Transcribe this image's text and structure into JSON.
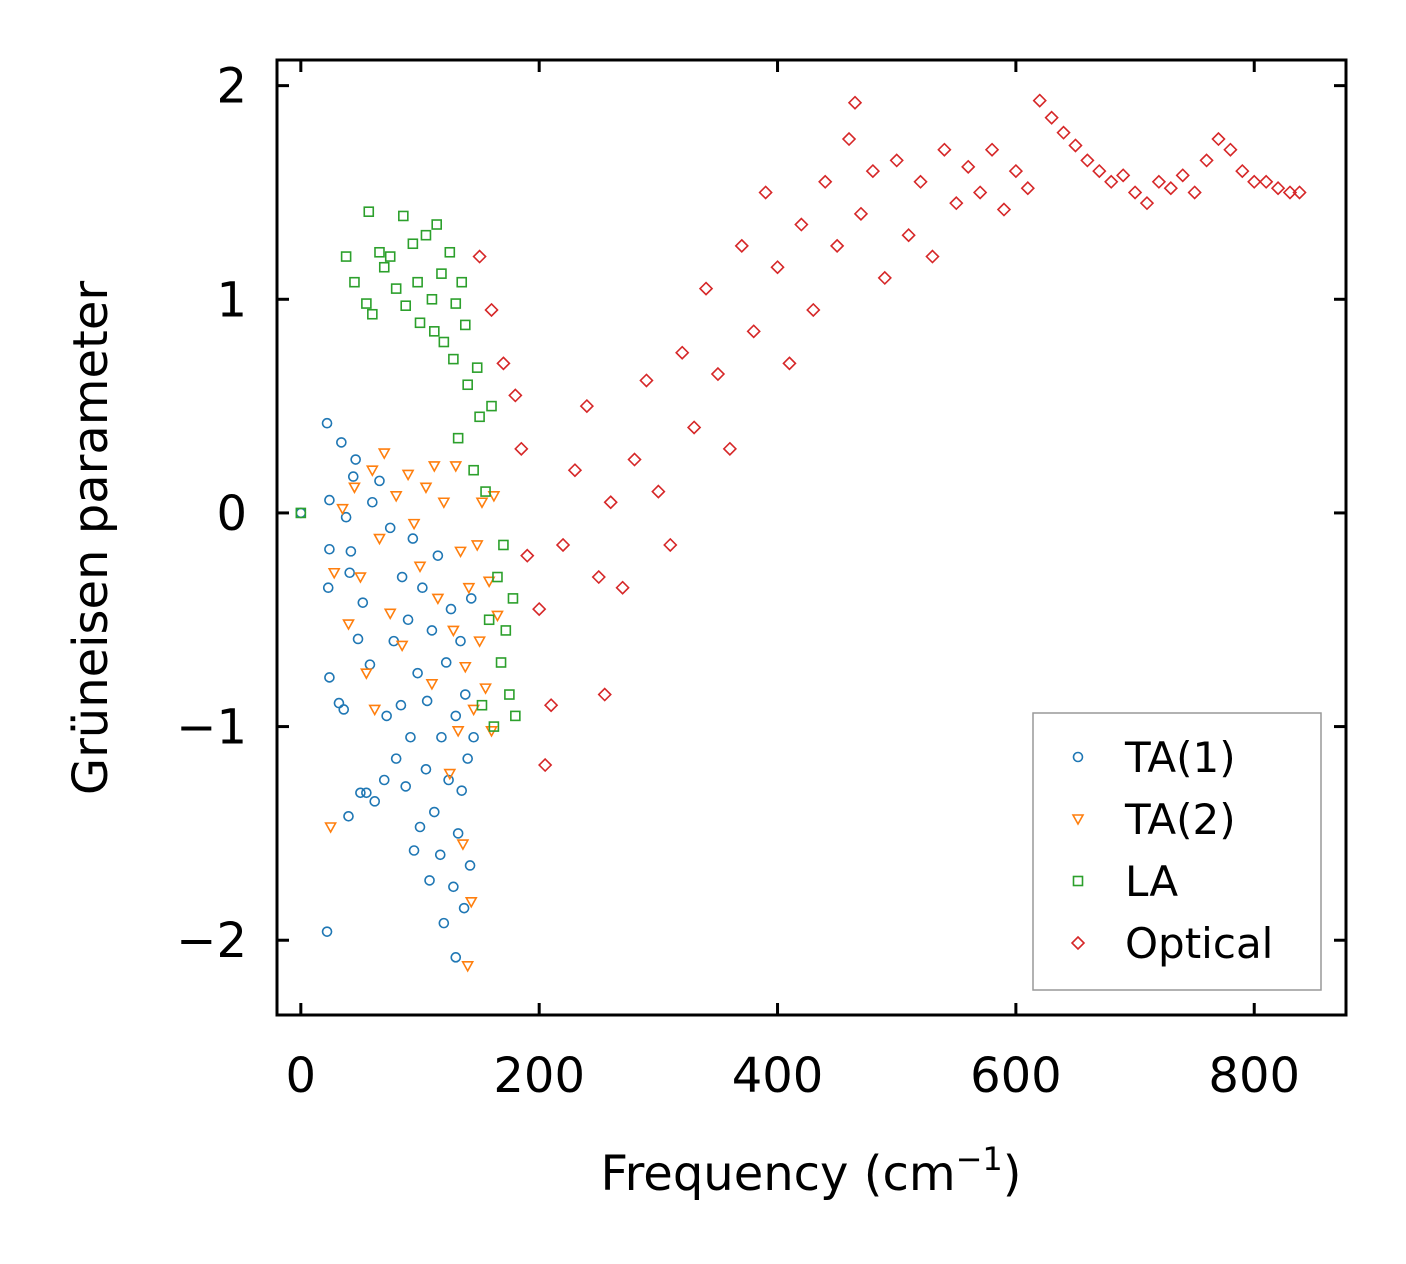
{
  "chart_data": {
    "type": "scatter",
    "title": "",
    "xlabel": "Frequency (cm",
    "xlabel_sup": "−1",
    "xlabel_close": ")",
    "ylabel": "Grüneisen parameter",
    "xlim": [
      -20,
      877
    ],
    "ylim": [
      -2.35,
      2.12
    ],
    "xticks": [
      0,
      200,
      400,
      600,
      800
    ],
    "xtick_labels": [
      "0",
      "200",
      "400",
      "600",
      "800"
    ],
    "yticks": [
      -2,
      -1,
      0,
      1,
      2
    ],
    "ytick_labels": [
      "−2",
      "−1",
      "0",
      "1",
      "2"
    ],
    "grid": false,
    "legend_position": "bottom-right",
    "series": [
      {
        "name": "TA(1)",
        "marker": "circle",
        "color": "#1f77b4",
        "points": [
          [
            0,
            0
          ],
          [
            22,
            -1.96
          ],
          [
            22,
            0.42
          ],
          [
            23,
            -0.35
          ],
          [
            24,
            -0.77
          ],
          [
            24,
            -0.17
          ],
          [
            24,
            0.06
          ],
          [
            32,
            -0.89
          ],
          [
            34,
            0.33
          ],
          [
            36,
            -0.92
          ],
          [
            38,
            -0.02
          ],
          [
            40,
            -1.42
          ],
          [
            41,
            -0.28
          ],
          [
            42,
            -0.18
          ],
          [
            44,
            0.17
          ],
          [
            46,
            0.25
          ],
          [
            48,
            -0.59
          ],
          [
            50,
            -1.31
          ],
          [
            52,
            -0.42
          ],
          [
            55,
            -1.31
          ],
          [
            58,
            -0.71
          ],
          [
            60,
            0.05
          ],
          [
            62,
            -1.35
          ],
          [
            66,
            0.15
          ],
          [
            70,
            -1.25
          ],
          [
            72,
            -0.95
          ],
          [
            75,
            -0.07
          ],
          [
            78,
            -0.6
          ],
          [
            80,
            -1.15
          ],
          [
            84,
            -0.9
          ],
          [
            85,
            -0.3
          ],
          [
            88,
            -1.28
          ],
          [
            90,
            -0.5
          ],
          [
            92,
            -1.05
          ],
          [
            94,
            -0.12
          ],
          [
            95,
            -1.58
          ],
          [
            98,
            -0.75
          ],
          [
            100,
            -1.47
          ],
          [
            102,
            -0.35
          ],
          [
            105,
            -1.2
          ],
          [
            106,
            -0.88
          ],
          [
            108,
            -1.72
          ],
          [
            110,
            -0.55
          ],
          [
            112,
            -1.4
          ],
          [
            115,
            -0.2
          ],
          [
            117,
            -1.6
          ],
          [
            118,
            -1.05
          ],
          [
            120,
            -1.92
          ],
          [
            122,
            -0.7
          ],
          [
            124,
            -1.25
          ],
          [
            126,
            -0.45
          ],
          [
            128,
            -1.75
          ],
          [
            130,
            -2.08
          ],
          [
            130,
            -0.95
          ],
          [
            132,
            -1.5
          ],
          [
            134,
            -0.6
          ],
          [
            135,
            -1.3
          ],
          [
            137,
            -1.85
          ],
          [
            138,
            -0.85
          ],
          [
            140,
            -1.15
          ],
          [
            142,
            -1.65
          ],
          [
            143,
            -0.4
          ],
          [
            145,
            -1.05
          ]
        ]
      },
      {
        "name": "TA(2)",
        "marker": "triangle-down",
        "color": "#ff7f0e",
        "points": [
          [
            25,
            -1.47
          ],
          [
            28,
            -0.28
          ],
          [
            35,
            0.02
          ],
          [
            40,
            -0.52
          ],
          [
            45,
            0.12
          ],
          [
            50,
            -0.3
          ],
          [
            55,
            -0.75
          ],
          [
            60,
            0.2
          ],
          [
            62,
            -0.92
          ],
          [
            66,
            -0.12
          ],
          [
            70,
            0.28
          ],
          [
            75,
            -0.47
          ],
          [
            80,
            0.08
          ],
          [
            85,
            -0.62
          ],
          [
            90,
            0.18
          ],
          [
            95,
            -0.05
          ],
          [
            100,
            -0.25
          ],
          [
            105,
            0.12
          ],
          [
            110,
            -0.8
          ],
          [
            112,
            0.22
          ],
          [
            115,
            -0.4
          ],
          [
            120,
            0.05
          ],
          [
            125,
            -1.22
          ],
          [
            128,
            -0.55
          ],
          [
            130,
            0.22
          ],
          [
            132,
            -1.02
          ],
          [
            134,
            -0.18
          ],
          [
            136,
            -1.55
          ],
          [
            138,
            -0.72
          ],
          [
            140,
            -2.12
          ],
          [
            141,
            -0.35
          ],
          [
            143,
            -1.82
          ],
          [
            145,
            -0.92
          ],
          [
            148,
            -0.15
          ],
          [
            150,
            -0.6
          ],
          [
            152,
            0.05
          ],
          [
            155,
            -0.82
          ],
          [
            158,
            -0.32
          ],
          [
            160,
            -1.02
          ],
          [
            162,
            0.08
          ],
          [
            165,
            -0.48
          ]
        ]
      },
      {
        "name": "LA",
        "marker": "square",
        "color": "#2ca02c",
        "points": [
          [
            0,
            0
          ],
          [
            38,
            1.2
          ],
          [
            45,
            1.08
          ],
          [
            55,
            0.98
          ],
          [
            57,
            1.41
          ],
          [
            60,
            0.93
          ],
          [
            66,
            1.22
          ],
          [
            70,
            1.15
          ],
          [
            75,
            1.2
          ],
          [
            80,
            1.05
          ],
          [
            86,
            1.39
          ],
          [
            88,
            0.97
          ],
          [
            94,
            1.26
          ],
          [
            98,
            1.08
          ],
          [
            100,
            0.89
          ],
          [
            105,
            1.3
          ],
          [
            110,
            1.0
          ],
          [
            112,
            0.85
          ],
          [
            114,
            1.35
          ],
          [
            118,
            1.12
          ],
          [
            120,
            0.8
          ],
          [
            125,
            1.22
          ],
          [
            128,
            0.72
          ],
          [
            130,
            0.98
          ],
          [
            132,
            0.35
          ],
          [
            135,
            1.08
          ],
          [
            138,
            0.88
          ],
          [
            140,
            0.6
          ],
          [
            145,
            0.2
          ],
          [
            148,
            0.68
          ],
          [
            150,
            0.45
          ],
          [
            152,
            -0.9
          ],
          [
            155,
            0.1
          ],
          [
            158,
            -0.5
          ],
          [
            160,
            0.5
          ],
          [
            162,
            -1.0
          ],
          [
            165,
            -0.3
          ],
          [
            168,
            -0.7
          ],
          [
            170,
            -0.15
          ],
          [
            172,
            -0.55
          ],
          [
            175,
            -0.85
          ],
          [
            178,
            -0.4
          ],
          [
            180,
            -0.95
          ]
        ]
      },
      {
        "name": "Optical",
        "marker": "diamond",
        "color": "#d62728",
        "points": [
          [
            150,
            1.2
          ],
          [
            160,
            0.95
          ],
          [
            170,
            0.7
          ],
          [
            180,
            0.55
          ],
          [
            185,
            0.3
          ],
          [
            190,
            -0.2
          ],
          [
            200,
            -0.45
          ],
          [
            205,
            -1.18
          ],
          [
            210,
            -0.9
          ],
          [
            220,
            -0.15
          ],
          [
            230,
            0.2
          ],
          [
            240,
            0.5
          ],
          [
            250,
            -0.3
          ],
          [
            255,
            -0.85
          ],
          [
            260,
            0.05
          ],
          [
            270,
            -0.35
          ],
          [
            280,
            0.25
          ],
          [
            290,
            0.62
          ],
          [
            300,
            0.1
          ],
          [
            310,
            -0.15
          ],
          [
            320,
            0.75
          ],
          [
            330,
            0.4
          ],
          [
            340,
            1.05
          ],
          [
            350,
            0.65
          ],
          [
            360,
            0.3
          ],
          [
            370,
            1.25
          ],
          [
            380,
            0.85
          ],
          [
            390,
            1.5
          ],
          [
            400,
            1.15
          ],
          [
            410,
            0.7
          ],
          [
            420,
            1.35
          ],
          [
            430,
            0.95
          ],
          [
            440,
            1.55
          ],
          [
            450,
            1.25
          ],
          [
            460,
            1.75
          ],
          [
            465,
            1.92
          ],
          [
            470,
            1.4
          ],
          [
            480,
            1.6
          ],
          [
            490,
            1.1
          ],
          [
            500,
            1.65
          ],
          [
            510,
            1.3
          ],
          [
            520,
            1.55
          ],
          [
            530,
            1.2
          ],
          [
            540,
            1.7
          ],
          [
            550,
            1.45
          ],
          [
            560,
            1.62
          ],
          [
            570,
            1.5
          ],
          [
            580,
            1.7
          ],
          [
            590,
            1.42
          ],
          [
            600,
            1.6
          ],
          [
            610,
            1.52
          ],
          [
            620,
            1.93
          ],
          [
            630,
            1.85
          ],
          [
            640,
            1.78
          ],
          [
            650,
            1.72
          ],
          [
            660,
            1.65
          ],
          [
            670,
            1.6
          ],
          [
            680,
            1.55
          ],
          [
            690,
            1.58
          ],
          [
            700,
            1.5
          ],
          [
            710,
            1.45
          ],
          [
            720,
            1.55
          ],
          [
            730,
            1.52
          ],
          [
            740,
            1.58
          ],
          [
            750,
            1.5
          ],
          [
            760,
            1.65
          ],
          [
            770,
            1.75
          ],
          [
            780,
            1.7
          ],
          [
            790,
            1.6
          ],
          [
            800,
            1.55
          ],
          [
            810,
            1.55
          ],
          [
            820,
            1.52
          ],
          [
            830,
            1.5
          ],
          [
            838,
            1.5
          ]
        ]
      }
    ]
  }
}
